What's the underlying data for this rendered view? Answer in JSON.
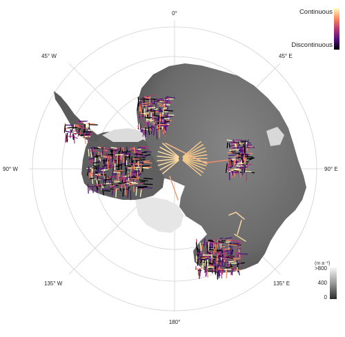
{
  "graticule": {
    "labels": {
      "top": "0°",
      "bottom": "180°",
      "left": "90° W",
      "right": "90° E",
      "upper_left": "45° W",
      "upper_right": "45° E",
      "lower_left": "135° W",
      "lower_right": "135° E"
    }
  },
  "legend_continuity": {
    "high_label": "Continuous",
    "low_label": "Discontinuous",
    "colors": [
      "#fcfdbf",
      "#fc8961",
      "#b73779",
      "#51127c",
      "#000004"
    ]
  },
  "legend_velocity": {
    "unit_label": "(m a⁻¹)",
    "ticks": [
      ">800",
      "400",
      "0"
    ],
    "colors": [
      "#f7f7f7",
      "#9a9a9a",
      "#2a2a2a"
    ]
  },
  "map_colors": {
    "ice": "#6b6b6b",
    "fast_ice": "#e2e2e2",
    "graticule": "#d0d0d0"
  }
}
